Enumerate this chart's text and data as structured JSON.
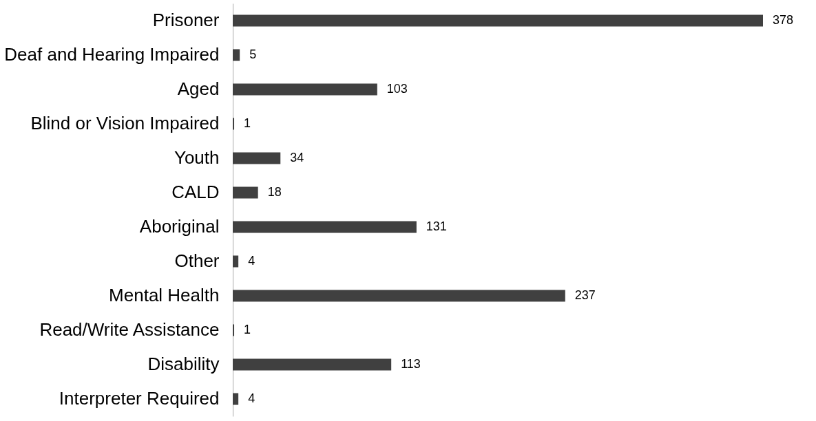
{
  "chart_data": {
    "type": "bar",
    "orientation": "horizontal",
    "categories": [
      "Prisoner",
      "Deaf and Hearing Impaired",
      "Aged",
      "Blind or Vision Impaired",
      "Youth",
      "CALD",
      "Aboriginal",
      "Other",
      "Mental Health",
      "Read/Write Assistance",
      "Disability",
      "Interpreter Required"
    ],
    "values": [
      378,
      5,
      103,
      1,
      34,
      18,
      131,
      4,
      237,
      1,
      113,
      4
    ],
    "color": "#404040",
    "data_labels": true
  }
}
